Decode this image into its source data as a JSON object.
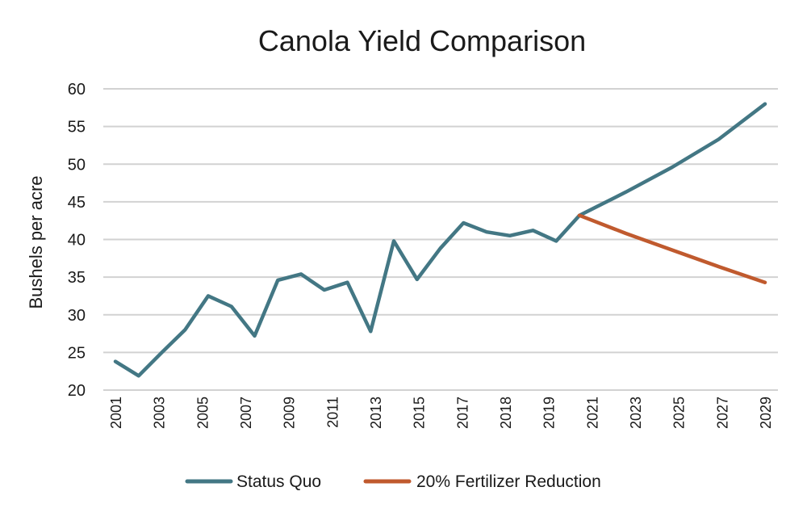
{
  "chart_data": {
    "type": "line",
    "title": "Canola Yield Comparison",
    "xlabel": "",
    "ylabel": "Bushels per acre",
    "ylim": [
      20,
      60
    ],
    "yticks": [
      20,
      25,
      30,
      35,
      40,
      45,
      50,
      55,
      60
    ],
    "xlim": [
      2001,
      2029
    ],
    "xtick_labels": [
      "2001",
      "2003",
      "2005",
      "2007",
      "2009",
      "2011",
      "2013",
      "2015",
      "2017",
      "2018",
      "2019",
      "2021",
      "2023",
      "2025",
      "2027",
      "2029"
    ],
    "grid": true,
    "legend_position": "bottom",
    "series": [
      {
        "name": "Status Quo",
        "color": "#437784",
        "points": [
          [
            2001,
            23.8
          ],
          [
            2002,
            21.9
          ],
          [
            2003,
            25.0
          ],
          [
            2004,
            28.0
          ],
          [
            2005,
            32.5
          ],
          [
            2006,
            31.1
          ],
          [
            2007,
            27.2
          ],
          [
            2008,
            34.6
          ],
          [
            2009,
            35.4
          ],
          [
            2010,
            33.3
          ],
          [
            2011,
            34.3
          ],
          [
            2012,
            27.8
          ],
          [
            2013,
            39.8
          ],
          [
            2014,
            34.7
          ],
          [
            2015,
            38.8
          ],
          [
            2016,
            42.2
          ],
          [
            2017,
            41.0
          ],
          [
            2018,
            40.5
          ],
          [
            2019,
            41.2
          ],
          [
            2020,
            39.8
          ],
          [
            2021,
            43.2
          ],
          [
            2023,
            46.3
          ],
          [
            2025,
            49.6
          ],
          [
            2027,
            53.3
          ],
          [
            2029,
            58.0
          ]
        ]
      },
      {
        "name": "20% Fertilizer Reduction",
        "color": "#c05a2e",
        "points": [
          [
            2021,
            43.2
          ],
          [
            2023,
            40.8
          ],
          [
            2025,
            38.6
          ],
          [
            2027,
            36.4
          ],
          [
            2029,
            34.3
          ]
        ]
      }
    ]
  }
}
